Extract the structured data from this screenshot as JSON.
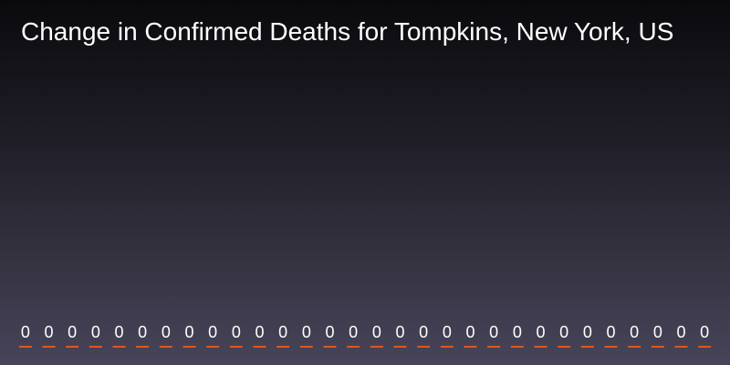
{
  "chart_data": {
    "type": "bar",
    "title": "Change in Confirmed Deaths for Tompkins, New York, US",
    "values": [
      0,
      0,
      0,
      0,
      0,
      0,
      0,
      0,
      0,
      0,
      0,
      0,
      0,
      0,
      0,
      0,
      0,
      0,
      0,
      0,
      0,
      0,
      0,
      0,
      0,
      0,
      0,
      0,
      0,
      0
    ],
    "value_labels": [
      "0",
      "0",
      "0",
      "0",
      "0",
      "0",
      "0",
      "0",
      "0",
      "0",
      "0",
      "0",
      "0",
      "0",
      "0",
      "0",
      "0",
      "0",
      "0",
      "0",
      "0",
      "0",
      "0",
      "0",
      "0",
      "0",
      "0",
      "0",
      "0",
      "0"
    ],
    "bar_color": "#e0561b",
    "label_color": "#ffffff"
  }
}
